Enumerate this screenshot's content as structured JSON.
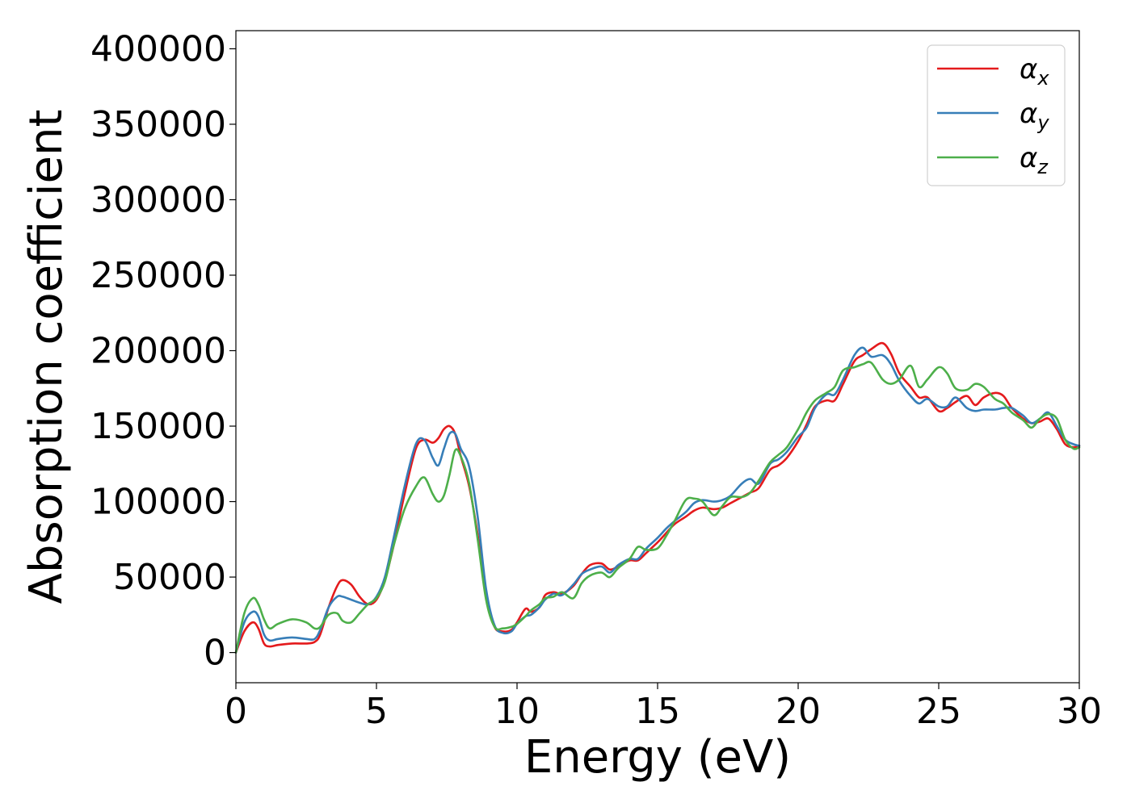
{
  "chart_data": {
    "type": "line",
    "title": "",
    "xlabel": "Energy (eV)",
    "ylabel": "Absorption coefficient",
    "xlim": [
      0,
      30
    ],
    "ylim": [
      -20000,
      412000
    ],
    "xticks": [
      0,
      5,
      10,
      15,
      20,
      25,
      30
    ],
    "yticks": [
      0,
      50000,
      100000,
      150000,
      200000,
      250000,
      300000,
      350000,
      400000
    ],
    "grid": false,
    "legend_position": "top-right",
    "series": [
      {
        "name": "αx",
        "name_main": "α",
        "name_sub": "x",
        "color": "#e41a1c",
        "x": [
          0,
          0.3,
          0.6,
          0.8,
          1.0,
          1.2,
          1.5,
          2.0,
          2.5,
          2.8,
          3.0,
          3.3,
          3.6,
          3.8,
          4.1,
          4.4,
          4.7,
          5.0,
          5.3,
          5.6,
          6.0,
          6.4,
          6.7,
          7.0,
          7.2,
          7.4,
          7.6,
          7.8,
          8.0,
          8.3,
          8.6,
          8.9,
          9.2,
          9.5,
          9.8,
          10.0,
          10.3,
          10.5,
          10.8,
          11.0,
          11.3,
          11.6,
          12.0,
          12.3,
          12.6,
          13.0,
          13.3,
          13.6,
          14.0,
          14.3,
          14.6,
          15.0,
          15.3,
          15.6,
          16.0,
          16.3,
          16.6,
          17.0,
          17.3,
          17.6,
          18.0,
          18.3,
          18.6,
          19.0,
          19.3,
          19.6,
          20.0,
          20.3,
          20.6,
          21.0,
          21.3,
          21.6,
          22.0,
          22.3,
          22.6,
          23.0,
          23.3,
          23.6,
          24.0,
          24.3,
          24.6,
          25.0,
          25.3,
          25.6,
          26.0,
          26.3,
          26.6,
          27.0,
          27.3,
          27.6,
          28.0,
          28.3,
          28.6,
          28.9,
          29.2,
          29.5,
          29.8,
          30.0
        ],
        "y": [
          0,
          14000,
          20000,
          16000,
          6000,
          4000,
          5000,
          6000,
          6000,
          7000,
          12000,
          30000,
          44000,
          48000,
          45000,
          37000,
          32000,
          35000,
          48000,
          70000,
          105000,
          135000,
          141000,
          139000,
          142000,
          148000,
          150000,
          145000,
          130000,
          110000,
          78000,
          38000,
          17000,
          14000,
          15000,
          20000,
          29000,
          27000,
          30000,
          38000,
          40000,
          39000,
          44000,
          52000,
          58000,
          59000,
          55000,
          57000,
          61000,
          61000,
          66000,
          73000,
          79000,
          85000,
          90000,
          94000,
          96000,
          95000,
          96000,
          99000,
          103000,
          106000,
          109000,
          121000,
          124000,
          129000,
          140000,
          151000,
          163000,
          167000,
          167000,
          178000,
          193000,
          197000,
          201000,
          205000,
          198000,
          185000,
          176000,
          169000,
          169000,
          160000,
          162000,
          166000,
          170000,
          164000,
          169000,
          172000,
          170000,
          162000,
          155000,
          152000,
          153000,
          155000,
          148000,
          138000,
          136000,
          137000
        ]
      },
      {
        "name": "αy",
        "name_main": "α",
        "name_sub": "y",
        "color": "#377eb8",
        "x": [
          0,
          0.3,
          0.6,
          0.8,
          1.0,
          1.2,
          1.5,
          2.0,
          2.5,
          2.8,
          3.0,
          3.3,
          3.6,
          3.8,
          4.1,
          4.4,
          4.7,
          5.0,
          5.3,
          5.6,
          6.0,
          6.4,
          6.7,
          7.0,
          7.2,
          7.4,
          7.6,
          7.8,
          8.0,
          8.3,
          8.6,
          8.9,
          9.2,
          9.5,
          9.8,
          10.0,
          10.3,
          10.5,
          10.8,
          11.0,
          11.3,
          11.6,
          12.0,
          12.3,
          12.6,
          13.0,
          13.3,
          13.6,
          14.0,
          14.3,
          14.6,
          15.0,
          15.3,
          15.6,
          16.0,
          16.3,
          16.6,
          17.0,
          17.3,
          17.6,
          18.0,
          18.3,
          18.6,
          19.0,
          19.3,
          19.6,
          20.0,
          20.3,
          20.6,
          21.0,
          21.3,
          21.6,
          22.0,
          22.3,
          22.6,
          23.0,
          23.3,
          23.6,
          24.0,
          24.3,
          24.6,
          25.0,
          25.3,
          25.6,
          26.0,
          26.3,
          26.6,
          27.0,
          27.3,
          27.6,
          28.0,
          28.3,
          28.6,
          28.9,
          29.2,
          29.5,
          29.8,
          30.0
        ],
        "y": [
          0,
          20000,
          27000,
          24000,
          12000,
          8000,
          9000,
          10000,
          9000,
          9000,
          15000,
          30000,
          37000,
          37000,
          35000,
          33000,
          32000,
          37000,
          50000,
          75000,
          110000,
          138000,
          141000,
          129000,
          124000,
          135000,
          145000,
          145000,
          135000,
          123000,
          90000,
          42000,
          18000,
          13000,
          14000,
          19000,
          24000,
          25000,
          30000,
          35000,
          39000,
          38000,
          45000,
          52000,
          55000,
          57000,
          53000,
          58000,
          62000,
          62000,
          69000,
          76000,
          82000,
          87000,
          93000,
          99000,
          101000,
          100000,
          101000,
          104000,
          112000,
          115000,
          112000,
          125000,
          128000,
          133000,
          143000,
          149000,
          162000,
          171000,
          171000,
          181000,
          197000,
          202000,
          196000,
          197000,
          191000,
          180000,
          170000,
          165000,
          168000,
          163000,
          163000,
          169000,
          162000,
          160000,
          161000,
          161000,
          162000,
          162000,
          157000,
          152000,
          155000,
          159000,
          150000,
          141000,
          138000,
          137000
        ]
      },
      {
        "name": "αz",
        "name_main": "α",
        "name_sub": "z",
        "color": "#4daf4a",
        "x": [
          0,
          0.3,
          0.6,
          0.8,
          1.0,
          1.2,
          1.5,
          2.0,
          2.5,
          2.8,
          3.0,
          3.3,
          3.6,
          3.8,
          4.1,
          4.4,
          4.7,
          5.0,
          5.3,
          5.6,
          6.0,
          6.4,
          6.7,
          7.0,
          7.2,
          7.4,
          7.6,
          7.8,
          8.0,
          8.3,
          8.6,
          8.9,
          9.2,
          9.5,
          9.8,
          10.0,
          10.3,
          10.5,
          10.8,
          11.0,
          11.3,
          11.6,
          12.0,
          12.3,
          12.6,
          13.0,
          13.3,
          13.6,
          14.0,
          14.3,
          14.6,
          15.0,
          15.3,
          15.6,
          16.0,
          16.3,
          16.6,
          17.0,
          17.3,
          17.6,
          18.0,
          18.3,
          18.6,
          19.0,
          19.3,
          19.6,
          20.0,
          20.3,
          20.6,
          21.0,
          21.3,
          21.6,
          22.0,
          22.3,
          22.6,
          23.0,
          23.3,
          23.6,
          24.0,
          24.3,
          24.6,
          25.0,
          25.3,
          25.6,
          26.0,
          26.3,
          26.6,
          27.0,
          27.3,
          27.6,
          28.0,
          28.3,
          28.6,
          28.9,
          29.2,
          29.5,
          29.8,
          30.0
        ],
        "y": [
          0,
          26000,
          36000,
          32000,
          22000,
          16000,
          19000,
          22000,
          20000,
          16000,
          17000,
          25000,
          26000,
          21000,
          20000,
          26000,
          32000,
          36000,
          47000,
          70000,
          95000,
          110000,
          116000,
          105000,
          100000,
          104000,
          118000,
          134000,
          130000,
          112000,
          75000,
          35000,
          17000,
          16000,
          17000,
          19000,
          24000,
          28000,
          32000,
          36000,
          37000,
          40000,
          36000,
          46000,
          51000,
          53000,
          50000,
          56000,
          62000,
          70000,
          68000,
          69000,
          77000,
          87000,
          101000,
          102000,
          100000,
          91000,
          97000,
          103000,
          103000,
          106000,
          114000,
          126000,
          131000,
          136000,
          148000,
          159000,
          167000,
          172000,
          176000,
          187000,
          189000,
          191000,
          192000,
          181000,
          178000,
          181000,
          190000,
          176000,
          181000,
          189000,
          185000,
          175000,
          174000,
          178000,
          176000,
          168000,
          165000,
          159000,
          154000,
          149000,
          155000,
          158000,
          155000,
          141000,
          135000,
          136000
        ]
      }
    ]
  }
}
